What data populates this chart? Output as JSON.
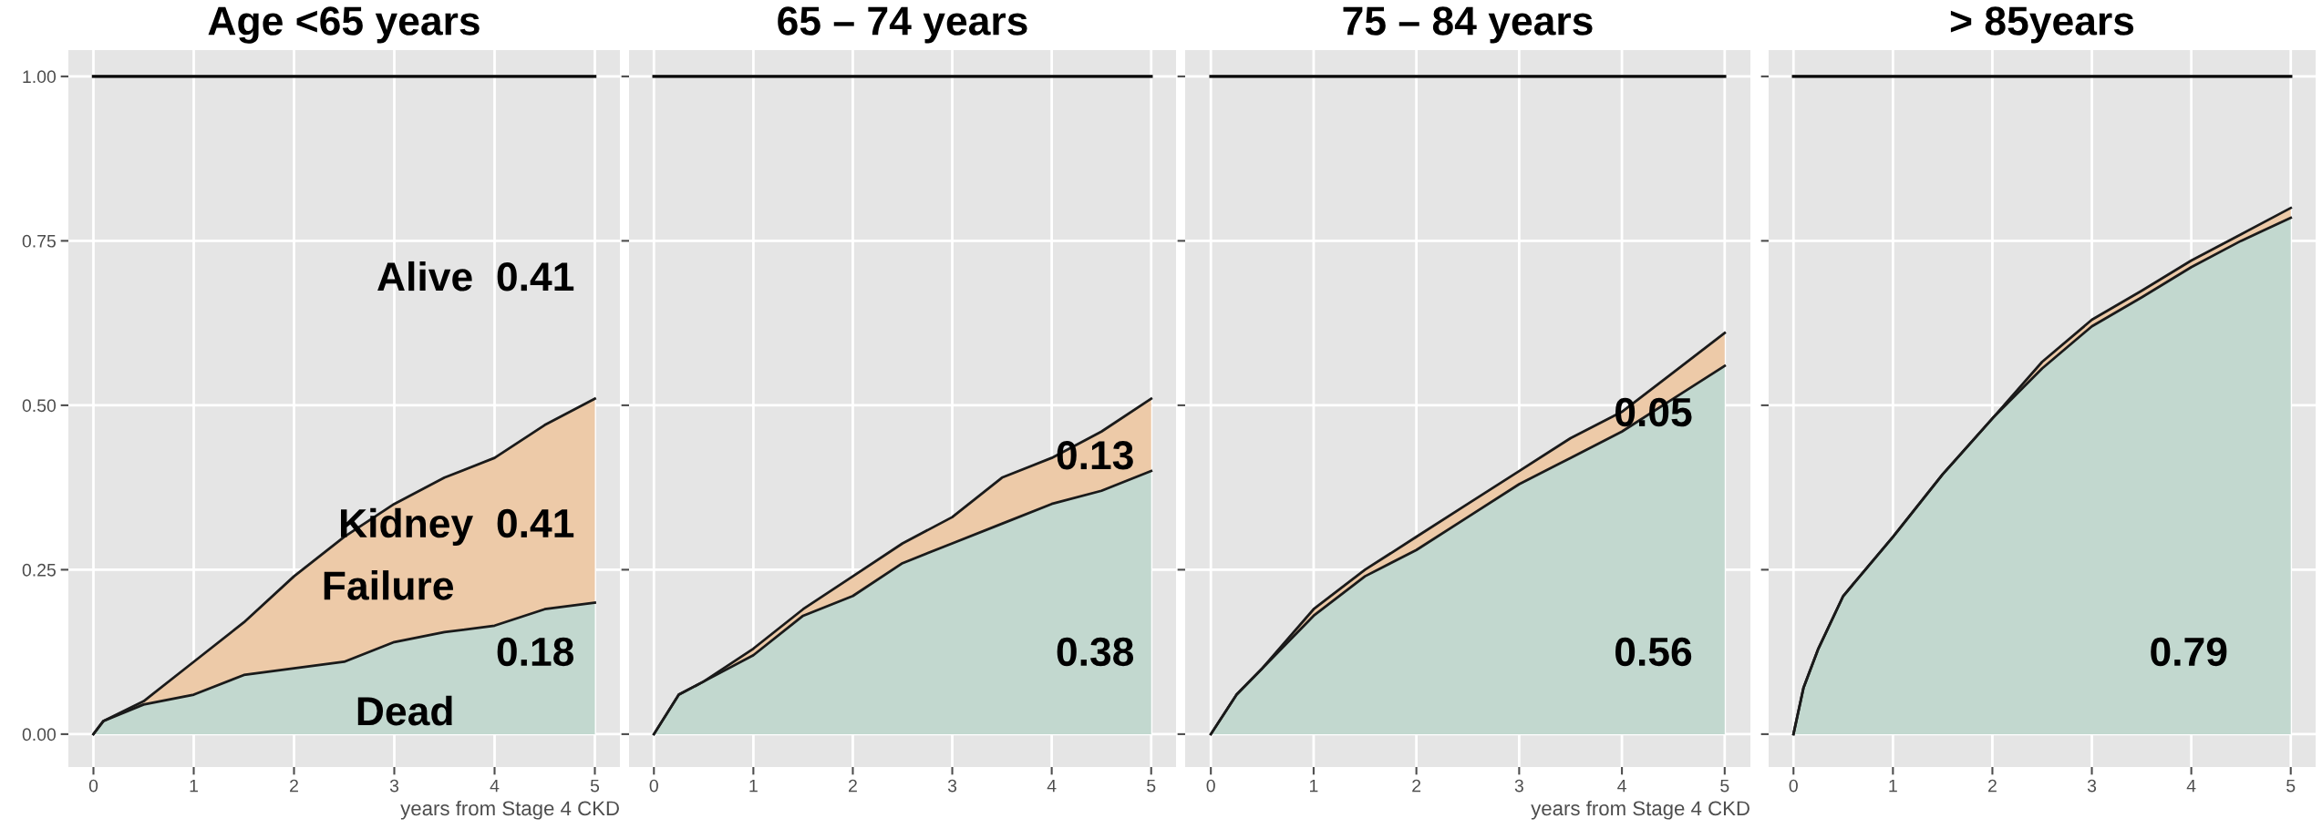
{
  "chart_data": [
    {
      "type": "area",
      "title": "Age <65 years",
      "xlabel": "years from Stage 4 CKD",
      "stacked": true,
      "x": [
        0,
        0.1,
        0.5,
        1,
        1.5,
        2,
        2.5,
        3,
        3.5,
        4,
        4.5,
        5
      ],
      "series": [
        {
          "color": "#c2d8cf",
          "values": [
            0,
            0.02,
            0.045,
            0.06,
            0.09,
            0.1,
            0.11,
            0.14,
            0.155,
            0.165,
            0.19,
            0.2
          ]
        },
        {
          "color": "#edcaa8",
          "values": [
            0,
            0,
            0.005,
            0.05,
            0.08,
            0.14,
            0.19,
            0.21,
            0.235,
            0.255,
            0.28,
            0.31
          ]
        }
      ],
      "xlim": [
        -0.25,
        5.25
      ],
      "ylim": [
        -0.05,
        1.04
      ],
      "xticks": [
        0,
        1,
        2,
        3,
        4,
        5
      ],
      "yticks": [
        {
          "value": 0,
          "label": "0.00"
        },
        {
          "value": 0.25,
          "label": "0.25"
        },
        {
          "value": 0.5,
          "label": "0.50"
        },
        {
          "value": 0.75,
          "label": "0.75"
        },
        {
          "value": 1,
          "label": "1.00"
        }
      ],
      "grid": true,
      "ref_lines": [
        {
          "axis": "y",
          "value": 1,
          "color": "#000000"
        }
      ],
      "annotations": [
        "Alive  0.41",
        "Kidney  0.41",
        "Failure",
        "0.18",
        "Dead"
      ]
    },
    {
      "type": "area",
      "title": "65 – 74 years",
      "stacked": true,
      "x": [
        0,
        0.25,
        0.5,
        1,
        1.5,
        2,
        2.5,
        3,
        3.5,
        4,
        4.5,
        5
      ],
      "series": [
        {
          "color": "#c2d8cf",
          "values": [
            0,
            0.06,
            0.08,
            0.12,
            0.18,
            0.21,
            0.26,
            0.29,
            0.32,
            0.35,
            0.37,
            0.4
          ]
        },
        {
          "color": "#edcaa8",
          "values": [
            0,
            0,
            0,
            0.01,
            0.01,
            0.03,
            0.03,
            0.04,
            0.07,
            0.07,
            0.09,
            0.11
          ]
        }
      ],
      "xlim": [
        -0.25,
        5.25
      ],
      "ylim": [
        -0.05,
        1.04
      ],
      "xticks": [
        0,
        1,
        2,
        3,
        4,
        5
      ],
      "yticks": [
        {
          "value": 0,
          "label": null
        },
        {
          "value": 0.25,
          "label": null
        },
        {
          "value": 0.5,
          "label": null
        },
        {
          "value": 0.75,
          "label": null
        },
        {
          "value": 1,
          "label": null
        }
      ],
      "tick_labels": "x",
      "grid": true,
      "ref_lines": [
        {
          "axis": "y",
          "value": 1,
          "color": "#000000"
        }
      ],
      "annotations": [
        "0.13",
        "0.38"
      ]
    },
    {
      "type": "area",
      "title": "75 – 84 years",
      "xlabel": "years from Stage 4 CKD",
      "stacked": true,
      "x": [
        0,
        0.25,
        0.5,
        1,
        1.5,
        2,
        2.5,
        3,
        3.5,
        4,
        4.5,
        5
      ],
      "series": [
        {
          "color": "#c2d8cf",
          "values": [
            0,
            0.06,
            0.1,
            0.18,
            0.24,
            0.28,
            0.33,
            0.38,
            0.42,
            0.46,
            0.51,
            0.56
          ]
        },
        {
          "color": "#edcaa8",
          "values": [
            0,
            0,
            0,
            0.01,
            0.01,
            0.02,
            0.02,
            0.02,
            0.03,
            0.03,
            0.04,
            0.05
          ]
        }
      ],
      "xlim": [
        -0.25,
        5.25
      ],
      "ylim": [
        -0.05,
        1.04
      ],
      "xticks": [
        0,
        1,
        2,
        3,
        4,
        5
      ],
      "yticks": [
        {
          "value": 0,
          "label": null
        },
        {
          "value": 0.25,
          "label": null
        },
        {
          "value": 0.5,
          "label": null
        },
        {
          "value": 0.75,
          "label": null
        },
        {
          "value": 1,
          "label": null
        }
      ],
      "tick_labels": "x",
      "grid": true,
      "ref_lines": [
        {
          "axis": "y",
          "value": 1,
          "color": "#000000"
        }
      ],
      "annotations": [
        "0.05",
        "0.56"
      ]
    },
    {
      "type": "area",
      "title": "> 85years",
      "stacked": true,
      "x": [
        0,
        0.1,
        0.25,
        0.5,
        1,
        1.5,
        2,
        2.5,
        3,
        3.5,
        4,
        4.5,
        5
      ],
      "series": [
        {
          "color": "#c2d8cf",
          "values": [
            0,
            0.07,
            0.13,
            0.21,
            0.3,
            0.395,
            0.48,
            0.556,
            0.62,
            0.664,
            0.71,
            0.75,
            0.785
          ]
        },
        {
          "color": "#edcaa8",
          "values": [
            0,
            0,
            0,
            0,
            0,
            0,
            0,
            0.01,
            0.01,
            0.01,
            0.01,
            0.01,
            0.015
          ]
        }
      ],
      "xlim": [
        -0.25,
        5.25
      ],
      "ylim": [
        -0.05,
        1.04
      ],
      "xticks": [
        0,
        1,
        2,
        3,
        4,
        5
      ],
      "yticks": [
        {
          "value": 0,
          "label": null
        },
        {
          "value": 0.25,
          "label": null
        },
        {
          "value": 0.5,
          "label": null
        },
        {
          "value": 0.75,
          "label": null
        },
        {
          "value": 1,
          "label": null
        }
      ],
      "tick_labels": "x",
      "grid": true,
      "ref_lines": [
        {
          "axis": "y",
          "value": 1,
          "color": "#000000"
        }
      ],
      "annotations": [
        "0.79"
      ]
    }
  ]
}
